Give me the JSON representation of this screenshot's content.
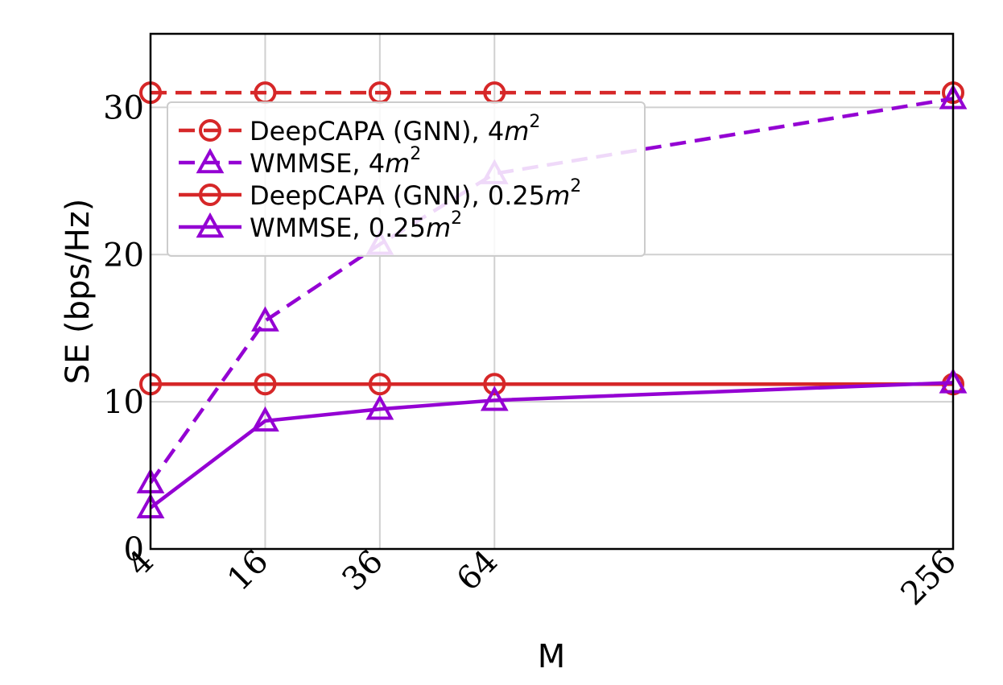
{
  "chart_data": {
    "type": "line",
    "title": "",
    "xlabel": "M",
    "ylabel": "SE (bps/Hz)",
    "x": [
      4,
      16,
      36,
      64,
      256
    ],
    "xtick_labels": [
      "4",
      "16",
      "36",
      "64",
      "256"
    ],
    "x_scale": "sqrt",
    "xlim": [
      4,
      256
    ],
    "ylim": [
      0,
      35
    ],
    "yticks": [
      0,
      10,
      20,
      30
    ],
    "ytick_labels": [
      "0",
      "10",
      "20",
      "30"
    ],
    "grid": true,
    "legend_position": "upper-left",
    "series": [
      {
        "name": "DeepCAPA (GNN), 4m²",
        "label_prefix": "DeepCAPA (GNN), 4",
        "label_unit": "m",
        "label_sup": "2",
        "color": "#d62728",
        "line_style": "dashed",
        "marker": "circle",
        "values": [
          31.0,
          31.0,
          31.0,
          31.0,
          31.0
        ]
      },
      {
        "name": "WMMSE, 4m²",
        "label_prefix": "WMMSE, 4",
        "label_unit": "m",
        "label_sup": "2",
        "color": "#9400d3",
        "line_style": "dashed",
        "marker": "triangle",
        "values": [
          4.5,
          15.5,
          20.7,
          25.5,
          30.6
        ]
      },
      {
        "name": "DeepCAPA (GNN), 0.25m²",
        "label_prefix": "DeepCAPA (GNN), 0.25",
        "label_unit": "m",
        "label_sup": "2",
        "color": "#d62728",
        "line_style": "solid",
        "marker": "circle",
        "values": [
          11.2,
          11.2,
          11.2,
          11.2,
          11.2
        ]
      },
      {
        "name": "WMMSE, 0.25m²",
        "label_prefix": "WMMSE, 0.25",
        "label_unit": "m",
        "label_sup": "2",
        "color": "#9400d3",
        "line_style": "solid",
        "marker": "triangle",
        "values": [
          2.8,
          8.7,
          9.5,
          10.1,
          11.3
        ]
      }
    ]
  }
}
